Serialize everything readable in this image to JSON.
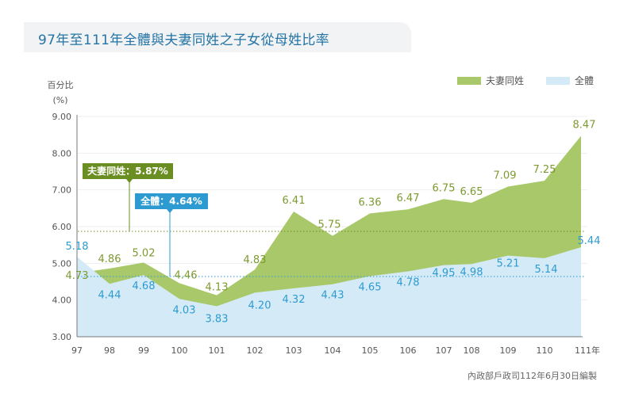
{
  "chart_data": {
    "type": "area",
    "title": "97年至111年全體與夫妻同姓之子女從母姓比率",
    "ylabel_line1": "百分比",
    "ylabel_line2": "(%)",
    "xlabel": "",
    "ylim": [
      3.0,
      9.0
    ],
    "yticks": [
      "3.00",
      "4.00",
      "5.00",
      "6.00",
      "7.00",
      "8.00",
      "9.00"
    ],
    "grid": true,
    "categories": [
      "97",
      "98",
      "99",
      "100",
      "101",
      "102",
      "103",
      "104",
      "105",
      "106",
      "107",
      "108",
      "109",
      "110",
      "111年"
    ],
    "series": [
      {
        "name": "夫妻同姓",
        "color": "#a8c86a",
        "label_color": "#7d9a30",
        "values": [
          4.73,
          4.86,
          5.02,
          4.46,
          4.13,
          4.83,
          6.41,
          5.75,
          6.36,
          6.47,
          6.75,
          6.65,
          7.09,
          7.25,
          8.47
        ]
      },
      {
        "name": "全體",
        "color": "#d4ebf7",
        "label_color": "#2d9bd2",
        "values": [
          5.18,
          4.44,
          4.68,
          4.03,
          3.83,
          4.2,
          4.32,
          4.43,
          4.65,
          4.78,
          4.95,
          4.98,
          5.21,
          5.14,
          5.44
        ]
      }
    ],
    "reference_lines": [
      {
        "name": "夫妻同姓",
        "value": 5.87,
        "label": "夫妻同姓：5.87%",
        "color": "#6b8e23"
      },
      {
        "name": "全體",
        "value": 4.64,
        "label": "全體：4.64%",
        "color": "#2d9bd2"
      }
    ],
    "legend": {
      "placement": "top-right",
      "items": [
        "夫妻同姓",
        "全體"
      ]
    },
    "source": "內政部戶政司112年6月30日編製"
  }
}
